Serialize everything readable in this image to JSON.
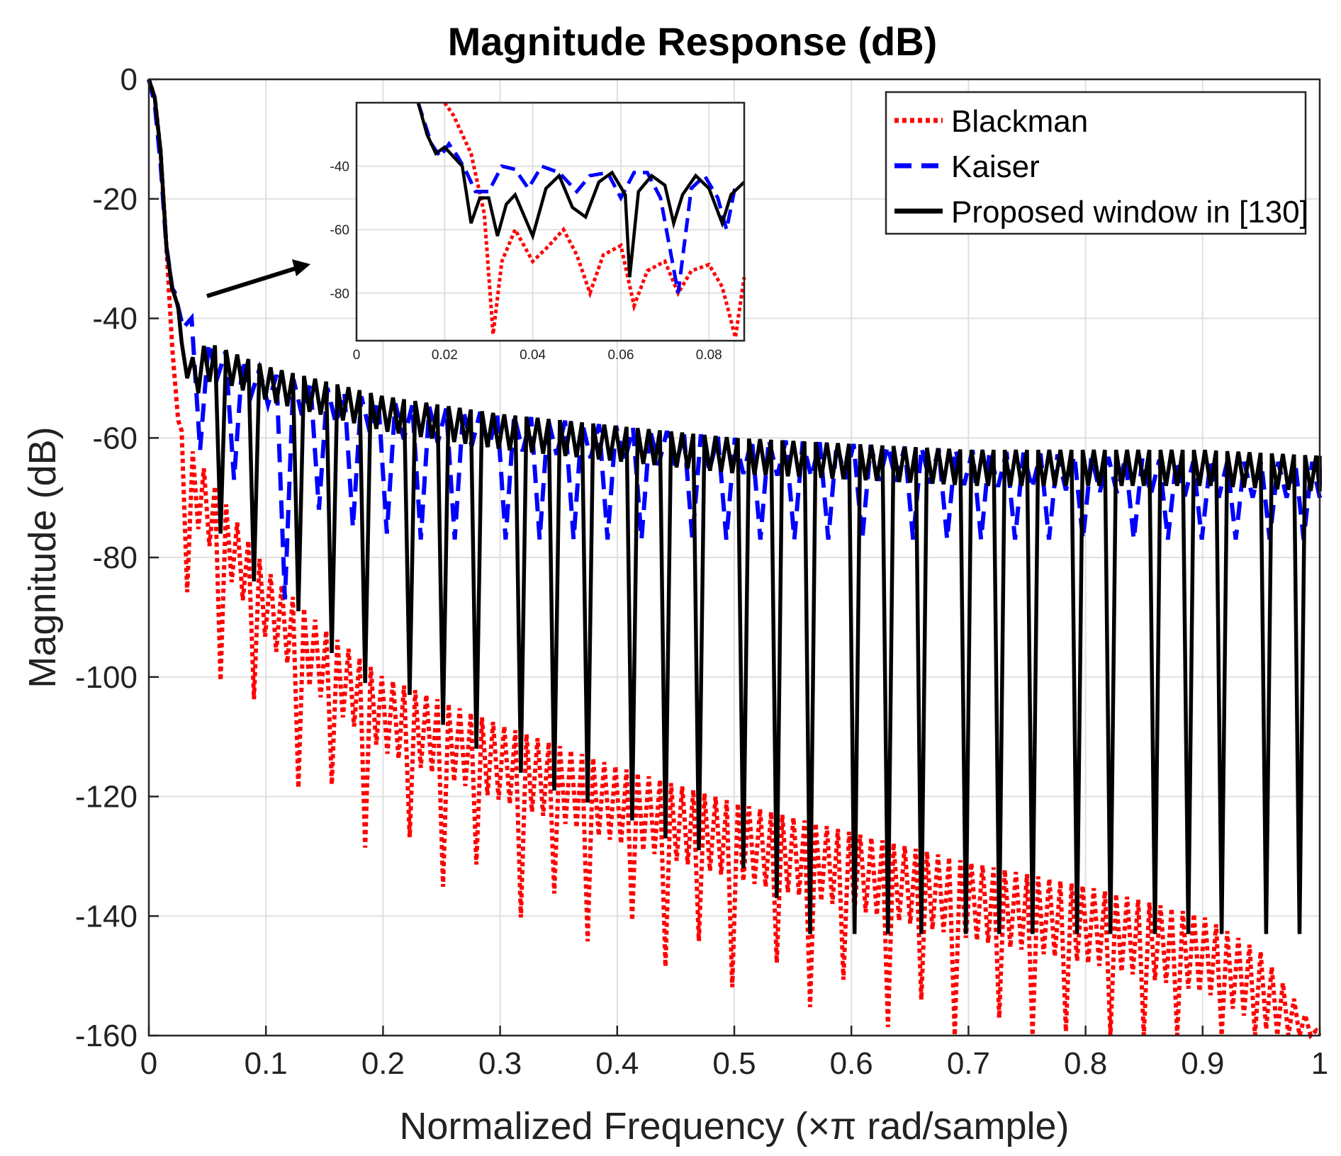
{
  "chart_data": {
    "type": "line",
    "title": "Magnitude Response (dB)",
    "xlabel": "Normalized Frequency (×π rad/sample)",
    "ylabel": "Magnitude (dB)",
    "xlim": [
      0,
      1
    ],
    "ylim": [
      -160,
      0
    ],
    "grid": true,
    "legend_position": "top-right",
    "x_ticks": [
      "0",
      "0.1",
      "0.2",
      "0.3",
      "0.4",
      "0.5",
      "0.6",
      "0.7",
      "0.8",
      "0.9",
      "1"
    ],
    "y_ticks": [
      "0",
      "-20",
      "-40",
      "-60",
      "-80",
      "-100",
      "-120",
      "-140",
      "-160"
    ],
    "series": [
      {
        "name": "Blackman",
        "color": "#ff0000",
        "style": "dotted",
        "x": [
          0,
          0.005,
          0.01,
          0.015,
          0.02,
          0.025,
          0.03,
          0.05,
          0.1,
          0.15,
          0.2,
          0.3,
          0.4,
          0.5,
          0.6,
          0.7,
          0.8,
          0.9,
          0.95,
          1.0
        ],
        "values": [
          0,
          -3,
          -12,
          -28,
          -45,
          -57,
          -60,
          -66,
          -82,
          -92,
          -100,
          -108,
          -115,
          -121,
          -126,
          -131,
          -135,
          -140,
          -146,
          -160
        ],
        "nulls_min_dB": [
          -92,
          -96,
          -105,
          -115,
          -125,
          -135,
          -140,
          -150,
          -160
        ]
      },
      {
        "name": "Kaiser",
        "color": "#0000ff",
        "style": "dashed",
        "x": [
          0,
          0.005,
          0.01,
          0.015,
          0.02,
          0.03,
          0.05,
          0.1,
          0.2,
          0.3,
          0.4,
          0.5,
          0.6,
          0.7,
          0.8,
          0.9,
          1.0
        ],
        "values": [
          0,
          -4,
          -14,
          -28,
          -35,
          -38,
          -44,
          -49,
          -54,
          -56,
          -58,
          -60,
          -61,
          -62,
          -63,
          -64,
          -64
        ],
        "nulls_min_dB": [
          -62,
          -67,
          -87,
          -72,
          -75,
          -76,
          -77
        ]
      },
      {
        "name": "Proposed window in [130]",
        "color": "#000000",
        "style": "solid",
        "x": [
          0,
          0.005,
          0.01,
          0.015,
          0.02,
          0.025,
          0.03,
          0.05,
          0.1,
          0.2,
          0.3,
          0.4,
          0.5,
          0.6,
          0.7,
          0.8,
          0.9,
          1.0
        ],
        "values": [
          0,
          -3,
          -12,
          -28,
          -35,
          -38,
          -48,
          -44,
          -48,
          -53,
          -56,
          -58,
          -60,
          -61,
          -62,
          -62,
          -62,
          -63
        ],
        "nulls_min_dB": [
          -76,
          -84,
          -89,
          -96,
          -101,
          -103,
          -108,
          -112,
          -116,
          -119,
          -121,
          -124,
          -127,
          -129,
          -132,
          -137,
          -143
        ]
      }
    ],
    "inset": {
      "xlim": [
        0,
        0.088
      ],
      "ylim": [
        -95,
        -20
      ],
      "x_ticks": [
        "0",
        "0.02",
        "0.04",
        "0.06",
        "0.08"
      ],
      "y_ticks": [
        "-40",
        "-60",
        "-80"
      ],
      "series": [
        {
          "name": "Blackman",
          "x": [
            0.02,
            0.022,
            0.026,
            0.029,
            0.031,
            0.033,
            0.036,
            0.04,
            0.043,
            0.047,
            0.05,
            0.053,
            0.056,
            0.06,
            0.063,
            0.066,
            0.07,
            0.073,
            0.076,
            0.08,
            0.083,
            0.086,
            0.088
          ],
          "values": [
            -20,
            -24,
            -36,
            -55,
            -93,
            -70,
            -60,
            -70,
            -66,
            -60,
            -68,
            -80,
            -68,
            -65,
            -84,
            -73,
            -70,
            -80,
            -73,
            -71,
            -78,
            -94,
            -75
          ]
        },
        {
          "name": "Kaiser",
          "x": [
            0.014,
            0.017,
            0.019,
            0.021,
            0.023,
            0.025,
            0.027,
            0.03,
            0.033,
            0.036,
            0.039,
            0.042,
            0.046,
            0.05,
            0.053,
            0.057,
            0.06,
            0.063,
            0.066,
            0.069,
            0.073,
            0.076,
            0.079,
            0.082,
            0.084,
            0.086
          ],
          "values": [
            -20,
            -33,
            -37,
            -33,
            -37,
            -42,
            -48,
            -48,
            -40,
            -41,
            -47,
            -40,
            -42,
            -48,
            -43,
            -42,
            -50,
            -42,
            -42,
            -50,
            -80,
            -47,
            -43,
            -50,
            -60,
            -46
          ]
        },
        {
          "name": "Proposed window in [130]",
          "x": [
            0.014,
            0.016,
            0.018,
            0.02,
            0.022,
            0.024,
            0.026,
            0.028,
            0.03,
            0.032,
            0.034,
            0.036,
            0.04,
            0.043,
            0.046,
            0.049,
            0.052,
            0.055,
            0.058,
            0.061,
            0.062,
            0.064,
            0.067,
            0.07,
            0.072,
            0.074,
            0.077,
            0.08,
            0.083,
            0.085,
            0.088
          ],
          "values": [
            -20,
            -30,
            -36,
            -34,
            -37,
            -40,
            -58,
            -50,
            -50,
            -62,
            -52,
            -49,
            -62,
            -47,
            -43,
            -53,
            -56,
            -45,
            -42,
            -49,
            -75,
            -48,
            -43,
            -46,
            -58,
            -49,
            -43,
            -47,
            -58,
            -49,
            -45
          ]
        }
      ]
    }
  }
}
